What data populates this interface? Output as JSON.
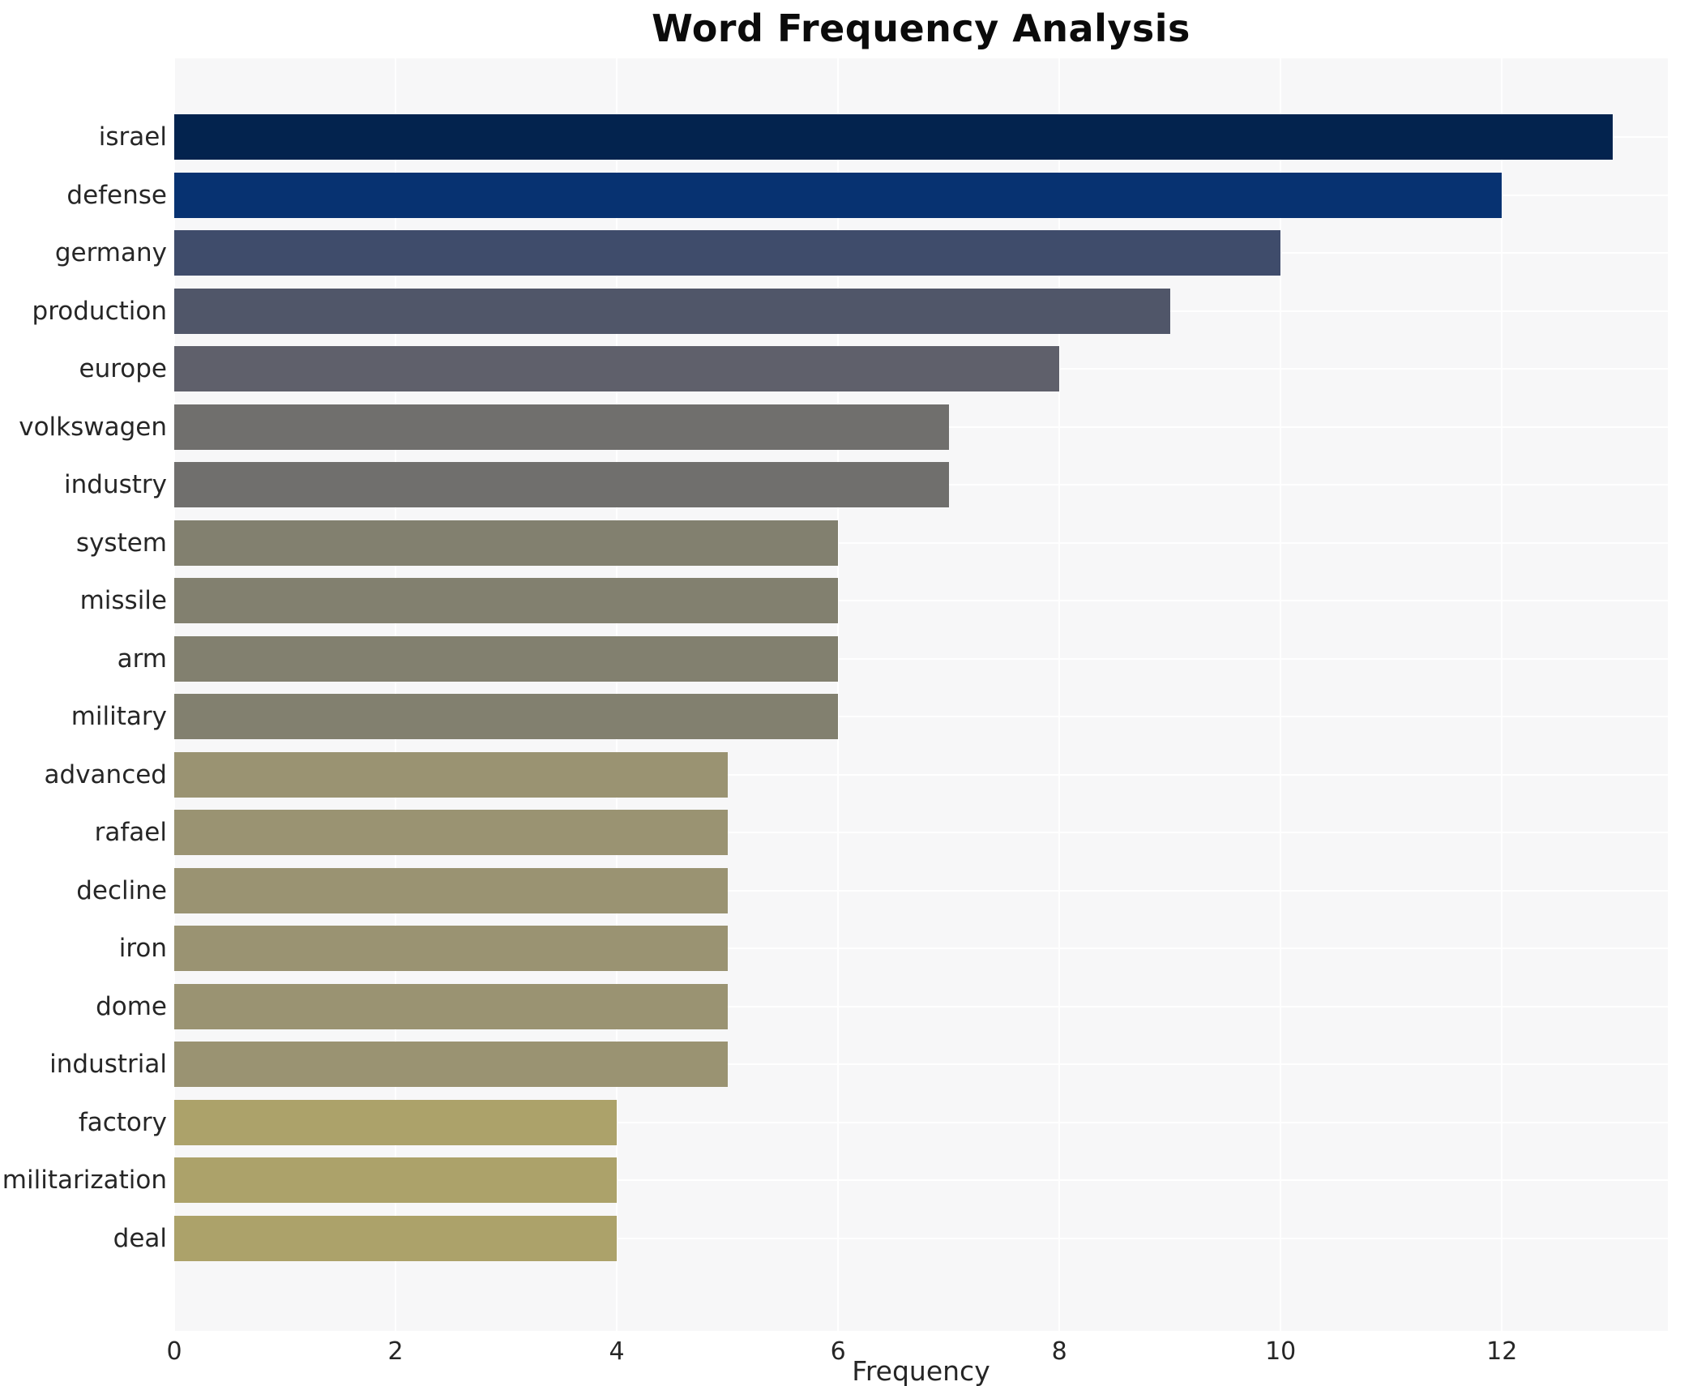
{
  "title": "Word Frequency Analysis",
  "chart_data": {
    "type": "bar",
    "orientation": "horizontal",
    "title": "Word Frequency Analysis",
    "xlabel": "Frequency",
    "ylabel": "",
    "grid": true,
    "legend": false,
    "plot_background": "#f7f7f8",
    "grid_color": "#ffffff",
    "tick_label_color": "#262626",
    "title_color": "#0b0b0b",
    "xlim": [
      0,
      13.5
    ],
    "xticks": [
      0,
      2,
      4,
      6,
      8,
      10,
      12
    ],
    "categories": [
      "israel",
      "defense",
      "germany",
      "production",
      "europe",
      "volkswagen",
      "industry",
      "system",
      "missile",
      "arm",
      "military",
      "advanced",
      "rafael",
      "decline",
      "iron",
      "dome",
      "industrial",
      "factory",
      "militarization",
      "deal"
    ],
    "values": [
      13,
      12,
      10,
      9,
      8,
      7,
      7,
      6,
      6,
      6,
      6,
      5,
      5,
      5,
      5,
      5,
      5,
      4,
      4,
      4
    ],
    "bar_colors": [
      "#03234e",
      "#073271",
      "#3f4c6b",
      "#505669",
      "#5f606b",
      "#706f6d",
      "#706f6d",
      "#82806f",
      "#82806f",
      "#82806f",
      "#82806f",
      "#9a9372",
      "#9a9372",
      "#9a9372",
      "#9a9372",
      "#9a9372",
      "#9a9372",
      "#aca26a",
      "#aca26a",
      "#aca26a"
    ]
  }
}
